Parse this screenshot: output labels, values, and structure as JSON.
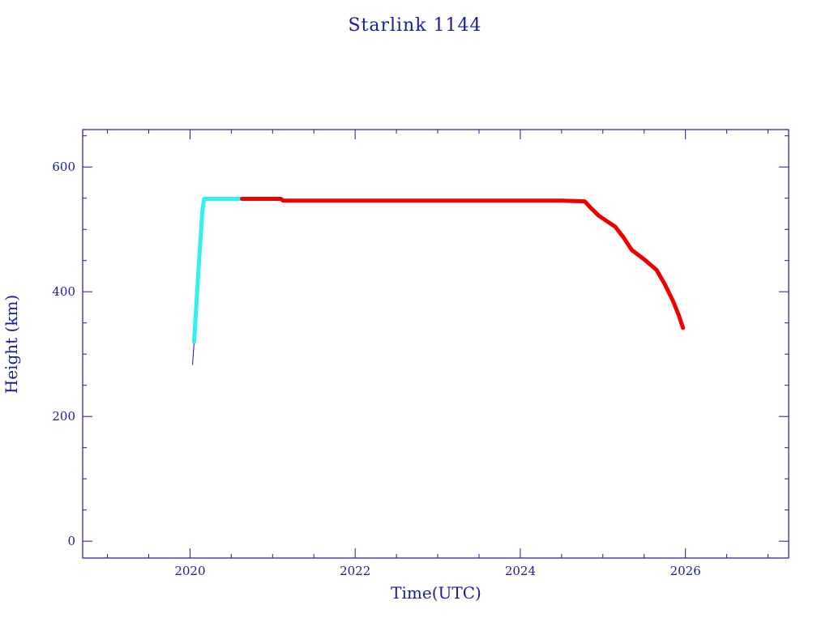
{
  "chart_data": {
    "type": "line",
    "title": "Starlink 1144",
    "xlabel": "Time(UTC)",
    "ylabel": "Height (km)",
    "xlim": [
      2018.7,
      2027.25
    ],
    "ylim": [
      -27,
      660
    ],
    "x_ticks": [
      2020,
      2022,
      2024,
      2026
    ],
    "x_tick_labels": [
      "2020",
      "2022",
      "2024",
      "2026"
    ],
    "x_minor_ticks": [
      2019.0,
      2019.5,
      2020.5,
      2021.0,
      2021.5,
      2022.5,
      2023.0,
      2023.5,
      2024.5,
      2025.0,
      2025.5,
      2026.5,
      2027.0
    ],
    "y_ticks": [
      0,
      200,
      400,
      600
    ],
    "y_tick_labels": [
      "0",
      "200",
      "400",
      "600"
    ],
    "y_minor_ticks": [
      50,
      100,
      150,
      250,
      300,
      350,
      450,
      500,
      550,
      650
    ],
    "grid": false,
    "colors": {
      "axis": "#1a1a9c",
      "text": "#1a1a9c"
    },
    "series": [
      {
        "color": "#1a1a9c",
        "width": 1,
        "x": [
          2020.03,
          2020.04,
          2020.05
        ],
        "y": [
          283,
          300,
          320
        ]
      },
      {
        "color": "#33f0f0",
        "width": 5,
        "x": [
          2020.05,
          2020.1,
          2020.15,
          2020.17,
          2020.3,
          2020.45,
          2020.63
        ],
        "y": [
          320,
          430,
          530,
          549,
          549,
          549,
          549
        ]
      },
      {
        "color": "#ee0000",
        "width": 5,
        "x": [
          2020.63,
          2020.9,
          2021.1,
          2021.13,
          2021.5,
          2022.0,
          2022.5,
          2023.0,
          2023.5,
          2024.0,
          2024.5,
          2024.78,
          2024.85,
          2024.95,
          2025.05,
          2025.15,
          2025.25,
          2025.35,
          2025.5,
          2025.65,
          2025.75,
          2025.85,
          2025.92,
          2025.97
        ],
        "y": [
          549,
          549,
          549,
          546,
          546,
          546,
          546,
          546,
          546,
          546,
          546,
          545,
          535,
          522,
          513,
          504,
          487,
          467,
          452,
          435,
          412,
          385,
          362,
          342
        ]
      }
    ]
  }
}
